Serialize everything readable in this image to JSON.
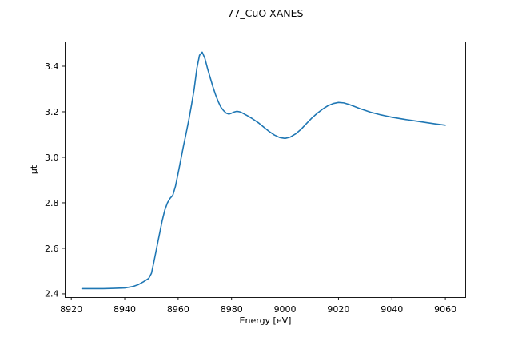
{
  "figure": {
    "background": "#ffffff",
    "title": "77_CuO XANES"
  },
  "chart_data": {
    "type": "line",
    "title": "77_CuO XANES",
    "xlabel": "Energy [eV]",
    "ylabel": "μt",
    "xlim": [
      8917.7,
      9067.6
    ],
    "ylim": [
      2.384,
      3.507
    ],
    "xticks": [
      8920,
      8940,
      8960,
      8980,
      9000,
      9020,
      9040,
      9060
    ],
    "xtick_labels": [
      "8920",
      "8940",
      "8960",
      "8980",
      "9000",
      "9020",
      "9040",
      "9060"
    ],
    "yticks": [
      2.4,
      2.6,
      2.8,
      3.0,
      3.2,
      3.4
    ],
    "ytick_labels": [
      "2.4",
      "2.6",
      "2.8",
      "3.0",
      "3.2",
      "3.4"
    ],
    "grid": false,
    "legend": null,
    "line_color": "#1f77b4",
    "spine_color": "#000000",
    "series": [
      {
        "name": "77_CuO XANES",
        "x": [
          8924,
          8928,
          8932,
          8936,
          8940,
          8943,
          8945,
          8947,
          8949,
          8950,
          8951,
          8952,
          8953,
          8954,
          8955,
          8956,
          8957,
          8958,
          8959,
          8960,
          8961,
          8962,
          8963,
          8964,
          8965,
          8966,
          8967,
          8968,
          8969,
          8970,
          8971,
          8972,
          8973,
          8974,
          8975,
          8976,
          8977,
          8978,
          8979,
          8980,
          8981,
          8982,
          8983,
          8984,
          8986,
          8988,
          8990,
          8992,
          8994,
          8996,
          8998,
          9000,
          9002,
          9004,
          9006,
          9008,
          9010,
          9012,
          9014,
          9016,
          9018,
          9020,
          9022,
          9024,
          9026,
          9028,
          9030,
          9032,
          9034,
          9036,
          9038,
          9040,
          9044,
          9048,
          9052,
          9056,
          9060
        ],
        "y": [
          2.423,
          2.423,
          2.423,
          2.424,
          2.426,
          2.432,
          2.44,
          2.453,
          2.468,
          2.49,
          2.545,
          2.604,
          2.662,
          2.72,
          2.768,
          2.8,
          2.82,
          2.833,
          2.873,
          2.93,
          2.99,
          3.05,
          3.106,
          3.165,
          3.23,
          3.3,
          3.39,
          3.448,
          3.462,
          3.435,
          3.39,
          3.35,
          3.31,
          3.275,
          3.245,
          3.22,
          3.205,
          3.194,
          3.19,
          3.194,
          3.199,
          3.202,
          3.2,
          3.195,
          3.182,
          3.168,
          3.152,
          3.133,
          3.114,
          3.098,
          3.087,
          3.083,
          3.089,
          3.103,
          3.123,
          3.148,
          3.172,
          3.193,
          3.211,
          3.226,
          3.236,
          3.241,
          3.239,
          3.232,
          3.223,
          3.214,
          3.206,
          3.198,
          3.192,
          3.186,
          3.181,
          3.176,
          3.168,
          3.161,
          3.154,
          3.147,
          3.141
        ]
      }
    ]
  }
}
